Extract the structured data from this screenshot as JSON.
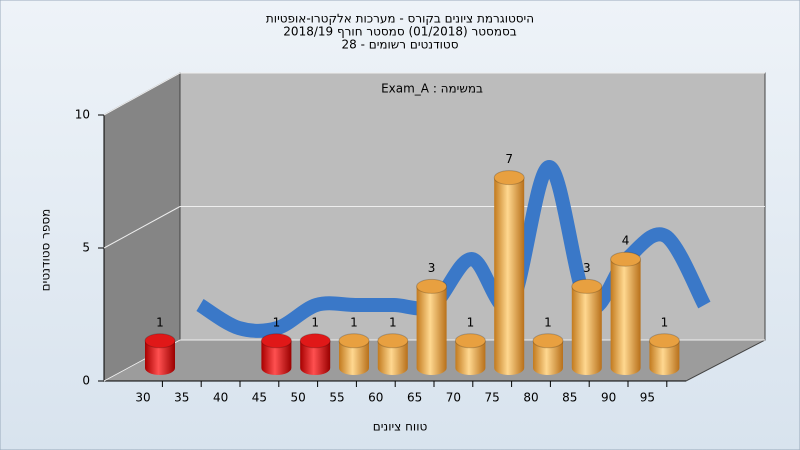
{
  "chart_data": {
    "type": "bar",
    "title": [
      "היסטוגרמת ציונים בקורס - מערכות אלקטרו-אופטיות",
      "בסמסטר (01/2018)  סמסטר חורף 2018/19",
      "סטודנטים רשומים - 28"
    ],
    "legend": "במשימה : Exam_A",
    "x_label": "טווח ציונים",
    "y_label": "מספר סטודנטים",
    "categories": [
      "30",
      "35",
      "40",
      "45",
      "50",
      "55",
      "60",
      "65",
      "70",
      "75",
      "80",
      "85",
      "90",
      "95"
    ],
    "series": [
      {
        "name": "Exam_A",
        "values": [
          1,
          0,
          0,
          1,
          1,
          1,
          1,
          3,
          1,
          7,
          1,
          3,
          4,
          1
        ],
        "colors": [
          "#e01818",
          "#e01818",
          "#e01818",
          "#e01818",
          "#e01818",
          "#e8a040",
          "#e8a040",
          "#e8a040",
          "#e8a040",
          "#e8a040",
          "#e8a040",
          "#e8a040",
          "#e8a040",
          "#e8a040"
        ]
      }
    ],
    "line_color": "#3a78c8",
    "ylim": [
      0,
      10
    ],
    "yticks": [
      0,
      5,
      10
    ],
    "grid": true
  }
}
